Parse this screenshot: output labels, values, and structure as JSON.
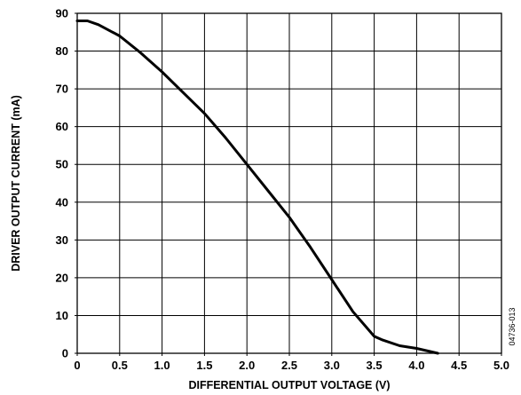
{
  "chart_data": {
    "type": "line",
    "xlabel": "DIFFERENTIAL OUTPUT VOLTAGE (V)",
    "ylabel": "DRIVER OUTPUT CURRENT (mA)",
    "xlim": [
      0,
      5.0
    ],
    "ylim": [
      0,
      90
    ],
    "x_ticks": [
      "0",
      "0.5",
      "1.0",
      "1.5",
      "2.0",
      "2.5",
      "3.0",
      "3.5",
      "4.0",
      "4.5",
      "5.0"
    ],
    "y_ticks": [
      "0",
      "10",
      "20",
      "30",
      "40",
      "50",
      "60",
      "70",
      "80",
      "90"
    ],
    "grid": true,
    "figure_code": "04736-013",
    "series": [
      {
        "color": "#000000",
        "x": [
          0.0,
          0.12,
          0.25,
          0.5,
          0.75,
          1.0,
          1.25,
          1.5,
          1.75,
          2.0,
          2.25,
          2.5,
          2.75,
          3.0,
          3.25,
          3.5,
          3.6,
          3.8,
          4.0,
          4.25
        ],
        "y": [
          88,
          88,
          87,
          84,
          79.5,
          74.5,
          69,
          63.5,
          57,
          50,
          43,
          36,
          28,
          19.5,
          11,
          4.5,
          3.5,
          2,
          1.3,
          0
        ]
      }
    ]
  }
}
